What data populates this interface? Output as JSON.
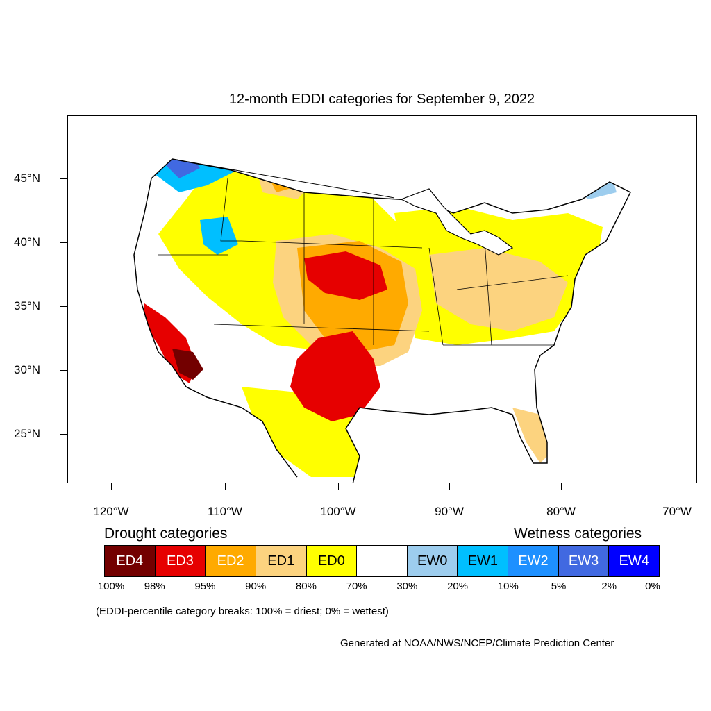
{
  "title": "12-month EDDI categories for September 9, 2022",
  "lat_labels": [
    "45°N",
    "40°N",
    "35°N",
    "30°N",
    "25°N"
  ],
  "lon_labels": [
    "120°W",
    "110°W",
    "100°W",
    "90°W",
    "80°W",
    "70°W"
  ],
  "legend": {
    "drought_heading": "Drought categories",
    "wetness_heading": "Wetness categories",
    "categories": [
      {
        "label": "ED4",
        "color": "#730000",
        "text_color": "#ffffff"
      },
      {
        "label": "ED3",
        "color": "#e60000",
        "text_color": "#ffffff"
      },
      {
        "label": "ED2",
        "color": "#ffaa00",
        "text_color": "#ffffff"
      },
      {
        "label": "ED1",
        "color": "#fcd37f",
        "text_color": "#000000"
      },
      {
        "label": "ED0",
        "color": "#ffff00",
        "text_color": "#000000"
      },
      {
        "label": "",
        "color": "#ffffff",
        "text_color": "#000000"
      },
      {
        "label": "EW0",
        "color": "#9dcdee",
        "text_color": "#000000"
      },
      {
        "label": "EW1",
        "color": "#00bfff",
        "text_color": "#000000"
      },
      {
        "label": "EW2",
        "color": "#1e90ff",
        "text_color": "#ffffff"
      },
      {
        "label": "EW3",
        "color": "#4169e1",
        "text_color": "#ffffff"
      },
      {
        "label": "EW4",
        "color": "#0000ff",
        "text_color": "#ffffff"
      }
    ],
    "percent_breaks": [
      "100%",
      "98%",
      "95%",
      "90%",
      "80%",
      "70%",
      "30%",
      "20%",
      "10%",
      "5%",
      "2%",
      "0%"
    ]
  },
  "note": "(EDDI-percentile category breaks: 100% = driest; 0% = wettest)",
  "credit": "Generated at NOAA/NWS/NCEP/Climate Prediction Center"
}
